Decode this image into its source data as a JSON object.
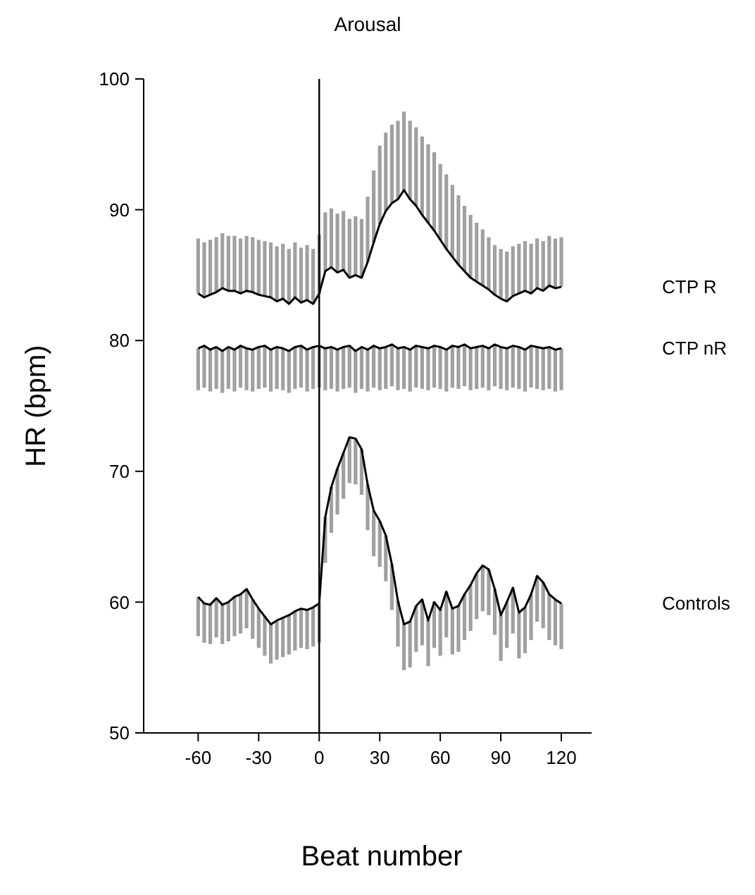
{
  "chart_data": {
    "type": "line",
    "title": "Arousal",
    "xlabel": "Beat number",
    "ylabel": "HR (bpm)",
    "x": [
      -60,
      -57,
      -54,
      -51,
      -48,
      -45,
      -42,
      -39,
      -36,
      -33,
      -30,
      -27,
      -24,
      -21,
      -18,
      -15,
      -12,
      -9,
      -6,
      -3,
      0,
      3,
      6,
      9,
      12,
      15,
      18,
      21,
      24,
      27,
      30,
      33,
      36,
      39,
      42,
      45,
      48,
      51,
      54,
      57,
      60,
      63,
      66,
      69,
      72,
      75,
      78,
      81,
      84,
      87,
      90,
      93,
      96,
      99,
      102,
      105,
      108,
      111,
      114,
      117,
      120
    ],
    "xlim": [
      -87,
      135
    ],
    "xticks": [
      -60,
      -30,
      0,
      30,
      60,
      90,
      120
    ],
    "ylim": [
      50,
      100
    ],
    "yticks": [
      50,
      60,
      70,
      80,
      90,
      100
    ],
    "grid": false,
    "marker": "none",
    "line_style": "solid",
    "ref_lines": [
      {
        "axis": "x",
        "value": 0,
        "color": "#000000"
      }
    ],
    "series": [
      {
        "name": "CTP R",
        "color": "#000000",
        "values": [
          83.6,
          83.3,
          83.5,
          83.7,
          84.0,
          83.8,
          83.8,
          83.6,
          83.8,
          83.7,
          83.5,
          83.4,
          83.3,
          83.0,
          83.2,
          82.8,
          83.3,
          82.9,
          83.1,
          82.8,
          83.6,
          85.3,
          85.6,
          85.2,
          85.4,
          84.8,
          85.0,
          84.8,
          86.0,
          87.5,
          88.9,
          89.9,
          90.5,
          90.8,
          91.5,
          90.8,
          90.3,
          89.6,
          89.0,
          88.4,
          87.7,
          87.0,
          86.4,
          85.8,
          85.3,
          84.8,
          84.5,
          84.2,
          83.9,
          83.5,
          83.2,
          83.0,
          83.4,
          83.6,
          83.8,
          83.6,
          84.0,
          83.8,
          84.2,
          84.0,
          84.1
        ],
        "errors": [
          [
            83.6,
            87.8
          ],
          [
            83.3,
            87.5
          ],
          [
            83.5,
            87.7
          ],
          [
            83.7,
            87.9
          ],
          [
            84.0,
            88.2
          ],
          [
            83.8,
            88.0
          ],
          [
            83.8,
            88.0
          ],
          [
            83.6,
            87.8
          ],
          [
            83.8,
            88.0
          ],
          [
            83.7,
            87.9
          ],
          [
            83.5,
            87.7
          ],
          [
            83.4,
            87.6
          ],
          [
            83.3,
            87.5
          ],
          [
            83.0,
            87.2
          ],
          [
            83.2,
            87.4
          ],
          [
            82.8,
            87.0
          ],
          [
            83.3,
            87.5
          ],
          [
            82.9,
            87.1
          ],
          [
            83.1,
            87.3
          ],
          [
            82.8,
            87.0
          ],
          [
            83.6,
            88.1
          ],
          [
            85.3,
            89.8
          ],
          [
            85.6,
            90.1
          ],
          [
            85.2,
            89.7
          ],
          [
            85.4,
            89.9
          ],
          [
            84.8,
            89.3
          ],
          [
            85.0,
            89.5
          ],
          [
            84.8,
            89.3
          ],
          [
            86.0,
            91.0
          ],
          [
            87.5,
            93.0
          ],
          [
            88.9,
            94.9
          ],
          [
            89.9,
            95.9
          ],
          [
            90.5,
            96.5
          ],
          [
            90.8,
            96.8
          ],
          [
            91.5,
            97.5
          ],
          [
            90.8,
            96.8
          ],
          [
            90.3,
            96.3
          ],
          [
            89.6,
            95.6
          ],
          [
            89.0,
            95.0
          ],
          [
            88.4,
            94.4
          ],
          [
            87.7,
            93.5
          ],
          [
            87.0,
            92.7
          ],
          [
            86.4,
            91.9
          ],
          [
            85.8,
            91.1
          ],
          [
            85.3,
            90.3
          ],
          [
            84.8,
            89.6
          ],
          [
            84.5,
            89.0
          ],
          [
            84.2,
            88.5
          ],
          [
            83.9,
            87.9
          ],
          [
            83.5,
            87.3
          ],
          [
            83.2,
            87.0
          ],
          [
            83.0,
            86.8
          ],
          [
            83.4,
            87.2
          ],
          [
            83.6,
            87.4
          ],
          [
            83.8,
            87.6
          ],
          [
            83.6,
            87.4
          ],
          [
            84.0,
            87.8
          ],
          [
            83.8,
            87.6
          ],
          [
            84.2,
            88.0
          ],
          [
            84.0,
            87.8
          ],
          [
            84.1,
            87.9
          ]
        ]
      },
      {
        "name": "CTP nR",
        "color": "#000000",
        "values": [
          79.4,
          79.6,
          79.3,
          79.5,
          79.2,
          79.5,
          79.3,
          79.6,
          79.4,
          79.3,
          79.5,
          79.6,
          79.3,
          79.5,
          79.4,
          79.2,
          79.5,
          79.6,
          79.3,
          79.5,
          79.6,
          79.4,
          79.5,
          79.3,
          79.5,
          79.6,
          79.2,
          79.5,
          79.3,
          79.6,
          79.4,
          79.5,
          79.7,
          79.4,
          79.5,
          79.3,
          79.6,
          79.5,
          79.4,
          79.6,
          79.5,
          79.3,
          79.6,
          79.5,
          79.7,
          79.4,
          79.5,
          79.6,
          79.4,
          79.7,
          79.5,
          79.4,
          79.6,
          79.5,
          79.3,
          79.6,
          79.5,
          79.4,
          79.5,
          79.3,
          79.4
        ],
        "errors": [
          [
            76.2,
            79.4
          ],
          [
            76.4,
            79.6
          ],
          [
            76.1,
            79.3
          ],
          [
            76.3,
            79.5
          ],
          [
            76.0,
            79.2
          ],
          [
            76.3,
            79.5
          ],
          [
            76.1,
            79.3
          ],
          [
            76.4,
            79.6
          ],
          [
            76.2,
            79.4
          ],
          [
            76.1,
            79.3
          ],
          [
            76.3,
            79.5
          ],
          [
            76.4,
            79.6
          ],
          [
            76.1,
            79.3
          ],
          [
            76.3,
            79.5
          ],
          [
            76.2,
            79.4
          ],
          [
            76.0,
            79.2
          ],
          [
            76.3,
            79.5
          ],
          [
            76.4,
            79.6
          ],
          [
            76.1,
            79.3
          ],
          [
            76.3,
            79.5
          ],
          [
            76.4,
            79.6
          ],
          [
            76.2,
            79.4
          ],
          [
            76.3,
            79.5
          ],
          [
            76.1,
            79.3
          ],
          [
            76.3,
            79.5
          ],
          [
            76.4,
            79.6
          ],
          [
            76.0,
            79.2
          ],
          [
            76.3,
            79.5
          ],
          [
            76.1,
            79.3
          ],
          [
            76.4,
            79.6
          ],
          [
            76.2,
            79.4
          ],
          [
            76.3,
            79.5
          ],
          [
            76.5,
            79.7
          ],
          [
            76.2,
            79.4
          ],
          [
            76.3,
            79.5
          ],
          [
            76.1,
            79.3
          ],
          [
            76.4,
            79.6
          ],
          [
            76.3,
            79.5
          ],
          [
            76.2,
            79.4
          ],
          [
            76.4,
            79.6
          ],
          [
            76.3,
            79.5
          ],
          [
            76.1,
            79.3
          ],
          [
            76.4,
            79.6
          ],
          [
            76.3,
            79.5
          ],
          [
            76.5,
            79.7
          ],
          [
            76.2,
            79.4
          ],
          [
            76.3,
            79.5
          ],
          [
            76.4,
            79.6
          ],
          [
            76.2,
            79.4
          ],
          [
            76.5,
            79.7
          ],
          [
            76.3,
            79.5
          ],
          [
            76.2,
            79.4
          ],
          [
            76.4,
            79.6
          ],
          [
            76.3,
            79.5
          ],
          [
            76.1,
            79.3
          ],
          [
            76.4,
            79.6
          ],
          [
            76.3,
            79.5
          ],
          [
            76.2,
            79.4
          ],
          [
            76.3,
            79.5
          ],
          [
            76.1,
            79.3
          ],
          [
            76.2,
            79.4
          ]
        ]
      },
      {
        "name": "Controls",
        "color": "#000000",
        "values": [
          60.4,
          59.9,
          59.8,
          60.3,
          59.8,
          60.0,
          60.4,
          60.6,
          61.0,
          60.2,
          59.5,
          58.9,
          58.3,
          58.6,
          58.8,
          59.0,
          59.3,
          59.5,
          59.4,
          59.6,
          59.9,
          66.5,
          68.8,
          70.2,
          71.4,
          72.6,
          72.5,
          71.7,
          69.0,
          67.0,
          66.2,
          65.1,
          62.9,
          60.1,
          58.3,
          58.5,
          59.7,
          60.2,
          58.6,
          60.0,
          59.4,
          60.8,
          59.5,
          59.7,
          60.6,
          61.3,
          62.2,
          62.8,
          62.5,
          61.0,
          59.0,
          60.0,
          61.1,
          59.2,
          59.6,
          60.6,
          62.0,
          61.5,
          60.6,
          60.2,
          59.9
        ],
        "errors": [
          [
            57.4,
            60.4
          ],
          [
            56.9,
            59.9
          ],
          [
            56.8,
            59.8
          ],
          [
            57.3,
            60.3
          ],
          [
            56.8,
            59.8
          ],
          [
            57.0,
            60.0
          ],
          [
            57.4,
            60.4
          ],
          [
            57.6,
            60.6
          ],
          [
            58.0,
            61.0
          ],
          [
            57.2,
            60.2
          ],
          [
            56.5,
            59.5
          ],
          [
            55.9,
            58.9
          ],
          [
            55.3,
            58.3
          ],
          [
            55.6,
            58.6
          ],
          [
            55.8,
            58.8
          ],
          [
            56.0,
            59.0
          ],
          [
            56.3,
            59.3
          ],
          [
            56.5,
            59.5
          ],
          [
            56.4,
            59.4
          ],
          [
            56.6,
            59.6
          ],
          [
            56.9,
            59.9
          ],
          [
            63.0,
            66.5
          ],
          [
            65.3,
            68.8
          ],
          [
            66.7,
            70.2
          ],
          [
            67.9,
            71.4
          ],
          [
            69.1,
            72.6
          ],
          [
            69.0,
            72.5
          ],
          [
            68.2,
            71.7
          ],
          [
            65.5,
            69.0
          ],
          [
            63.5,
            67.0
          ],
          [
            62.7,
            66.2
          ],
          [
            61.6,
            65.1
          ],
          [
            59.4,
            62.9
          ],
          [
            56.6,
            60.1
          ],
          [
            54.8,
            58.3
          ],
          [
            55.0,
            58.5
          ],
          [
            56.2,
            59.7
          ],
          [
            56.7,
            60.2
          ],
          [
            55.1,
            58.6
          ],
          [
            56.5,
            60.0
          ],
          [
            55.9,
            59.4
          ],
          [
            57.3,
            60.8
          ],
          [
            56.0,
            59.5
          ],
          [
            56.2,
            59.7
          ],
          [
            57.1,
            60.6
          ],
          [
            57.8,
            61.3
          ],
          [
            58.7,
            62.2
          ],
          [
            59.3,
            62.8
          ],
          [
            59.0,
            62.5
          ],
          [
            57.5,
            61.0
          ],
          [
            55.5,
            59.0
          ],
          [
            56.5,
            60.0
          ],
          [
            57.6,
            61.1
          ],
          [
            55.7,
            59.2
          ],
          [
            56.1,
            59.6
          ],
          [
            57.1,
            60.6
          ],
          [
            58.5,
            62.0
          ],
          [
            58.0,
            61.5
          ],
          [
            57.1,
            60.6
          ],
          [
            56.7,
            60.2
          ],
          [
            56.4,
            59.9
          ]
        ]
      }
    ]
  }
}
